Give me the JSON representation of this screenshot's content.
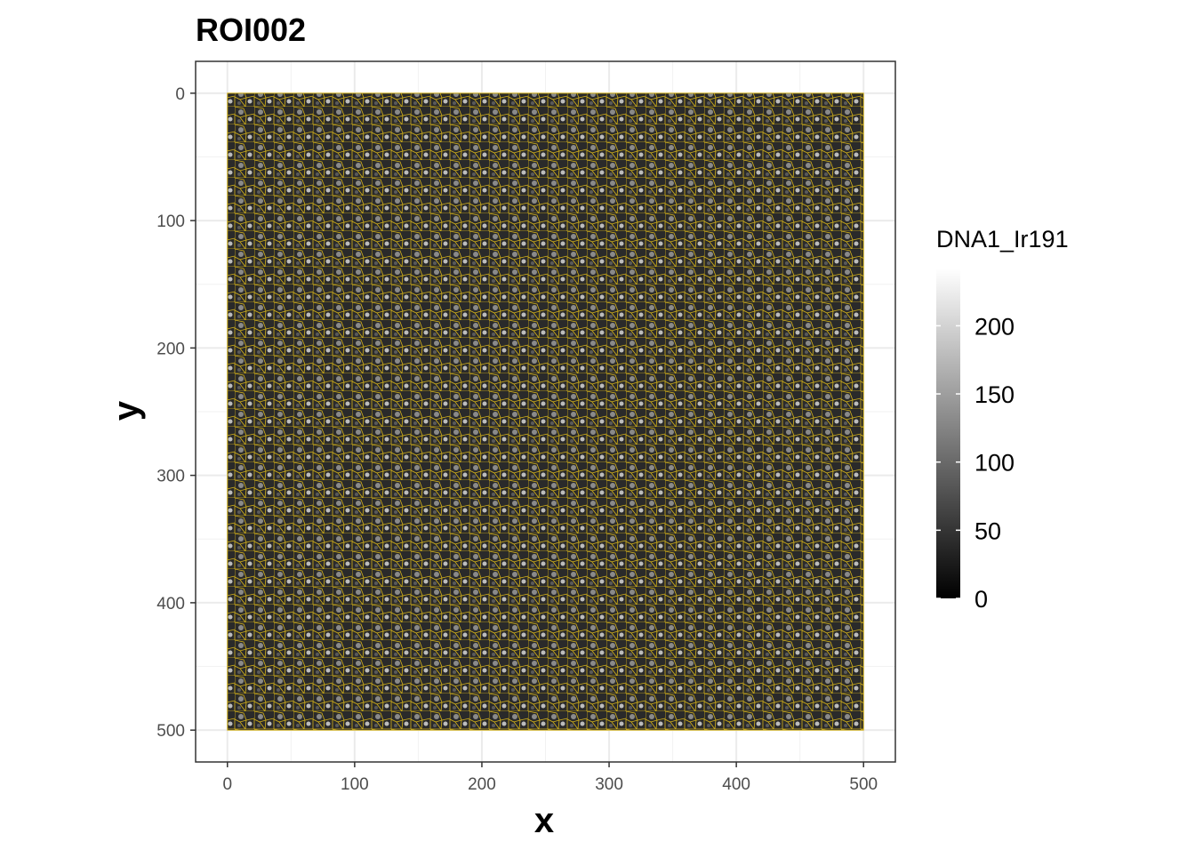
{
  "chart_data": {
    "type": "image",
    "title": "ROI002",
    "x_label": "x",
    "y_label": "y",
    "xlim": [
      -25,
      525
    ],
    "ylim": [
      -25,
      525
    ],
    "y_reversed": true,
    "xticks": [
      0,
      100,
      200,
      300,
      400,
      500
    ],
    "yticks": [
      0,
      100,
      200,
      300,
      400,
      500
    ],
    "image_extent": [
      0,
      500,
      0,
      500
    ],
    "grid": true,
    "outline_color": "#d4b21a",
    "colorbar": {
      "title": "DNA1_Ir191",
      "lim": [
        0,
        242
      ],
      "ticks": [
        0,
        50,
        100,
        150,
        200
      ],
      "colors": [
        "#000000",
        "#ffffff"
      ]
    }
  }
}
